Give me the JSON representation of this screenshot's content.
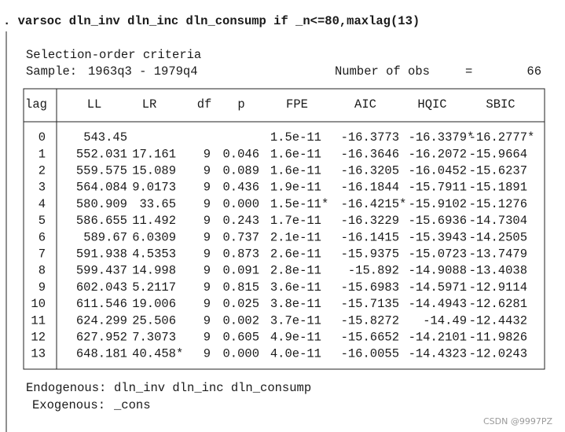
{
  "command": ". varsoc dln_inv dln_inc dln_consump if _n<=80,maxlag(13)",
  "title": "Selection-order criteria",
  "sample_label": "Sample:",
  "sample": "1963q3 - 1979q4",
  "obs_label": "Number of obs",
  "obs_eq": "=",
  "obs": "66",
  "table": {
    "columns": [
      "lag",
      "LL",
      "LR",
      "df",
      "p",
      "FPE",
      "AIC",
      "HQIC",
      "SBIC"
    ],
    "rows": [
      [
        "0",
        "543.45",
        null,
        null,
        null,
        "1.5e-11",
        "-16.3773",
        "-16.3379*",
        "-16.2777*"
      ],
      [
        "1",
        "552.031",
        "17.161",
        "9",
        "0.046",
        "1.6e-11",
        "-16.3646",
        "-16.2072",
        "-15.9664"
      ],
      [
        "2",
        "559.575",
        "15.089",
        "9",
        "0.089",
        "1.6e-11",
        "-16.3205",
        "-16.0452",
        "-15.6237"
      ],
      [
        "3",
        "564.084",
        "9.0173",
        "9",
        "0.436",
        "1.9e-11",
        "-16.1844",
        "-15.7911",
        "-15.1891"
      ],
      [
        "4",
        "580.909",
        "33.65",
        "9",
        "0.000",
        "1.5e-11*",
        "-16.4215*",
        "-15.9102",
        "-15.1276"
      ],
      [
        "5",
        "586.655",
        "11.492",
        "9",
        "0.243",
        "1.7e-11",
        "-16.3229",
        "-15.6936",
        "-14.7304"
      ],
      [
        "6",
        "589.67",
        "6.0309",
        "9",
        "0.737",
        "2.1e-11",
        "-16.1415",
        "-15.3943",
        "-14.2505"
      ],
      [
        "7",
        "591.938",
        "4.5353",
        "9",
        "0.873",
        "2.6e-11",
        "-15.9375",
        "-15.0723",
        "-13.7479"
      ],
      [
        "8",
        "599.437",
        "14.998",
        "9",
        "0.091",
        "2.8e-11",
        "-15.892",
        "-14.9088",
        "-13.4038"
      ],
      [
        "9",
        "602.043",
        "5.2117",
        "9",
        "0.815",
        "3.6e-11",
        "-15.6983",
        "-14.5971",
        "-12.9114"
      ],
      [
        "10",
        "611.546",
        "19.006",
        "9",
        "0.025",
        "3.8e-11",
        "-15.7135",
        "-14.4943",
        "-12.6281"
      ],
      [
        "11",
        "624.299",
        "25.506",
        "9",
        "0.002",
        "3.7e-11",
        "-15.8272",
        "-14.49",
        "-12.4432"
      ],
      [
        "12",
        "627.952",
        "7.3073",
        "9",
        "0.605",
        "4.9e-11",
        "-15.6652",
        "-14.2101",
        "-11.9826"
      ],
      [
        "13",
        "648.181",
        "40.458*",
        "9",
        "0.000",
        "4.0e-11",
        "-16.0055",
        "-14.4323",
        "-12.0243"
      ]
    ]
  },
  "footer": {
    "endogenous_label": "Endogenous:",
    "endogenous": "dln_inv dln_inc dln_consump",
    "exogenous_label": "Exogenous:",
    "exogenous": "_cons"
  },
  "watermark": "CSDN @9997PZ"
}
